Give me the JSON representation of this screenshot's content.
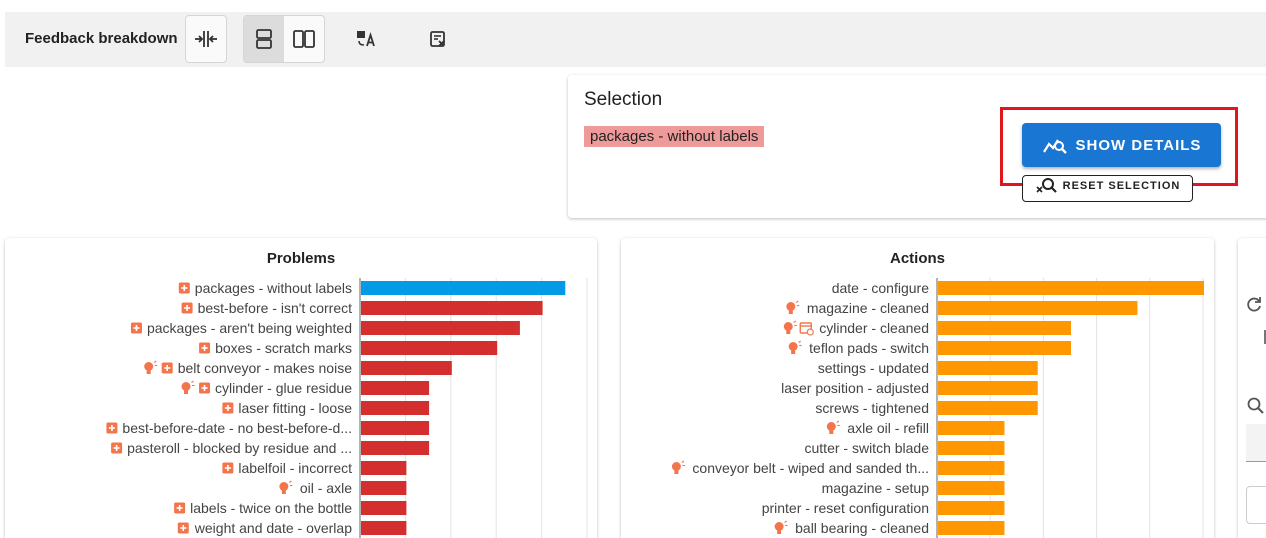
{
  "toolbar": {
    "title": "Feedback breakdown"
  },
  "selection": {
    "title": "Selection",
    "chip": "packages - without labels",
    "show_details_label": "SHOW DETAILS",
    "reset_label": "RESET SELECTION"
  },
  "colors": {
    "selected": "#039be5",
    "problems": "#d32f2f",
    "actions": "#ff9800",
    "icon": "#f4754b",
    "primary": "#1976d2"
  },
  "chart_data": [
    {
      "type": "bar",
      "title": "Problems",
      "categories": [
        "packages - without labels",
        "best-before - isn't correct",
        "packages - aren't being weighted",
        "boxes - scratch marks",
        "belt conveyor - makes noise",
        "cylinder - glue residue",
        "laser fitting - loose",
        "best-before-date - no best-before-d...",
        "pasteroll - blocked by residue and ...",
        "labelfoil - incorrect",
        "oil - axle",
        "labels - twice on the bottle",
        "weight and date - overlap"
      ],
      "values": [
        9,
        8,
        7,
        6,
        4,
        3,
        3,
        3,
        3,
        2,
        2,
        2,
        2
      ],
      "icons": [
        [
          "plus"
        ],
        [
          "plus"
        ],
        [
          "plus"
        ],
        [
          "plus"
        ],
        [
          "bulb",
          "plus"
        ],
        [
          "bulb",
          "plus"
        ],
        [
          "plus"
        ],
        [
          "plus"
        ],
        [
          "plus"
        ],
        [
          "plus"
        ],
        [
          "bulb"
        ],
        [
          "plus"
        ],
        [
          "plus"
        ]
      ],
      "selected_index": 0,
      "xlim": [
        0,
        10
      ]
    },
    {
      "type": "bar",
      "title": "Actions",
      "categories": [
        "date - configure",
        "magazine - cleaned",
        "cylinder - cleaned",
        "teflon pads - switch",
        "settings - updated",
        "laser position - adjusted",
        "screws - tightened",
        "axle oil - refill",
        "cutter - switch blade",
        "conveyor belt - wiped and sanded th...",
        "magazine - setup",
        "printer - reset configuration",
        "ball bearing - cleaned"
      ],
      "values": [
        8,
        6,
        4,
        4,
        3,
        3,
        3,
        2,
        2,
        2,
        2,
        2,
        2
      ],
      "icons": [
        [],
        [
          "bulb"
        ],
        [
          "bulb",
          "calendar"
        ],
        [
          "bulb"
        ],
        [],
        [],
        [],
        [
          "bulb"
        ],
        [],
        [
          "bulb"
        ],
        [],
        [],
        [
          "bulb"
        ]
      ],
      "selected_index": -1,
      "xlim": [
        0,
        8
      ]
    }
  ]
}
